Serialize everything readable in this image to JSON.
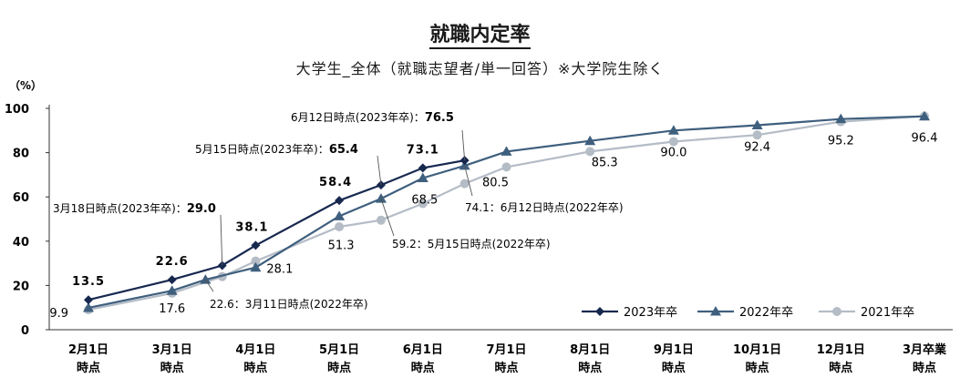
{
  "chart_data": {
    "type": "line",
    "title": "就職内定率",
    "subtitle": "大学生_全体（就職志望者/単一回答）※大学院生除く",
    "ylabel": "（%）",
    "ylim": [
      0,
      100
    ],
    "yticks": [
      0,
      20,
      40,
      60,
      80,
      100
    ],
    "grid": false,
    "legend_position": "bottom-right",
    "categories": [
      [
        "2月1日",
        "時点"
      ],
      [
        "3月1日",
        "時点"
      ],
      [
        "4月1日",
        "時点"
      ],
      [
        "5月1日",
        "時点"
      ],
      [
        "6月1日",
        "時点"
      ],
      [
        "7月1日",
        "時点"
      ],
      [
        "8月1日",
        "時点"
      ],
      [
        "9月1日",
        "時点"
      ],
      [
        "10月1日",
        "時点"
      ],
      [
        "12月1日",
        "時点"
      ],
      [
        "3月卒業",
        "時点"
      ]
    ],
    "series": [
      {
        "name": "2023年卒",
        "color": "#17284f",
        "marker": "diamond",
        "points": [
          {
            "x": 0,
            "y": 13.5
          },
          {
            "x": 1,
            "y": 22.6
          },
          {
            "x": 1.6,
            "y": 29.0
          },
          {
            "x": 2,
            "y": 38.1
          },
          {
            "x": 3,
            "y": 58.4
          },
          {
            "x": 3.5,
            "y": 65.4
          },
          {
            "x": 4,
            "y": 73.1
          },
          {
            "x": 4.5,
            "y": 76.5
          }
        ]
      },
      {
        "name": "2022年卒",
        "color": "#3f5f7e",
        "marker": "triangle",
        "points": [
          {
            "x": 0,
            "y": 9.9
          },
          {
            "x": 1,
            "y": 17.6
          },
          {
            "x": 1.4,
            "y": 22.6
          },
          {
            "x": 2,
            "y": 28.1
          },
          {
            "x": 3,
            "y": 51.3
          },
          {
            "x": 3.5,
            "y": 59.2
          },
          {
            "x": 4,
            "y": 68.5
          },
          {
            "x": 4.5,
            "y": 74.1
          },
          {
            "x": 5,
            "y": 80.5
          },
          {
            "x": 6,
            "y": 85.3
          },
          {
            "x": 7,
            "y": 90.0
          },
          {
            "x": 8,
            "y": 92.4
          },
          {
            "x": 9,
            "y": 95.2
          },
          {
            "x": 10,
            "y": 96.4
          }
        ]
      },
      {
        "name": "2021年卒",
        "color": "#b4bcc6",
        "marker": "circle",
        "points": [
          {
            "x": 0,
            "y": 9.0
          },
          {
            "x": 1,
            "y": 16.5
          },
          {
            "x": 1.6,
            "y": 24.0
          },
          {
            "x": 2,
            "y": 31.0
          },
          {
            "x": 3,
            "y": 46.5
          },
          {
            "x": 3.5,
            "y": 49.5
          },
          {
            "x": 4,
            "y": 57.0
          },
          {
            "x": 4.5,
            "y": 66.0
          },
          {
            "x": 5,
            "y": 73.5
          },
          {
            "x": 6,
            "y": 80.5
          },
          {
            "x": 7,
            "y": 85.0
          },
          {
            "x": 8,
            "y": 88.0
          },
          {
            "x": 9,
            "y": 94.0
          },
          {
            "x": 10,
            "y": 96.5
          }
        ]
      }
    ],
    "data_labels": [
      {
        "text": "13.5",
        "x": 0,
        "y": 13.5,
        "bold": true,
        "dx": 0,
        "dy": -16,
        "anchor": "middle"
      },
      {
        "text": "22.6",
        "x": 1,
        "y": 22.6,
        "bold": true,
        "dx": 0,
        "dy": -16,
        "anchor": "middle"
      },
      {
        "text": "38.1",
        "x": 2,
        "y": 38.1,
        "bold": true,
        "dx": -4,
        "dy": -16,
        "anchor": "middle"
      },
      {
        "text": "58.4",
        "x": 3,
        "y": 58.4,
        "bold": true,
        "dx": -4,
        "dy": -16,
        "anchor": "middle"
      },
      {
        "text": "73.1",
        "x": 4,
        "y": 73.1,
        "bold": true,
        "dx": 0,
        "dy": -16,
        "anchor": "middle"
      },
      {
        "text": "9.9",
        "x": 0,
        "y": 9.9,
        "bold": false,
        "dx": -22,
        "dy": 10,
        "anchor": "end"
      },
      {
        "text": "17.6",
        "x": 1,
        "y": 17.6,
        "bold": false,
        "dx": 0,
        "dy": 24,
        "anchor": "middle"
      },
      {
        "text": "28.1",
        "x": 2,
        "y": 28.1,
        "bold": false,
        "dx": 12,
        "dy": 6,
        "anchor": "start"
      },
      {
        "text": "51.3",
        "x": 3,
        "y": 51.3,
        "bold": false,
        "dx": 2,
        "dy": 36,
        "anchor": "middle"
      },
      {
        "text": "68.5",
        "x": 4,
        "y": 68.5,
        "bold": false,
        "dx": 2,
        "dy": 28,
        "anchor": "middle"
      },
      {
        "text": "80.5",
        "x": 5,
        "y": 80.5,
        "bold": false,
        "dx": -12,
        "dy": 38,
        "anchor": "middle"
      },
      {
        "text": "85.3",
        "x": 6,
        "y": 85.3,
        "bold": false,
        "dx": 16,
        "dy": 28,
        "anchor": "middle"
      },
      {
        "text": "90.0",
        "x": 7,
        "y": 90.0,
        "bold": false,
        "dx": 0,
        "dy": 28,
        "anchor": "middle"
      },
      {
        "text": "92.4",
        "x": 8,
        "y": 92.4,
        "bold": false,
        "dx": 0,
        "dy": 28,
        "anchor": "middle"
      },
      {
        "text": "95.2",
        "x": 9,
        "y": 95.2,
        "bold": false,
        "dx": 0,
        "dy": 28,
        "anchor": "middle"
      },
      {
        "text": "96.4",
        "x": 10,
        "y": 96.4,
        "bold": false,
        "dx": 0,
        "dy": 28,
        "anchor": "middle"
      }
    ],
    "annotations": [
      {
        "label": "3月18日時点(2023年卒)：",
        "value": "29.0",
        "bold_value": true
      },
      {
        "label": "5月15日時点(2023年卒)：",
        "value": "65.4",
        "bold_value": true
      },
      {
        "label": "6月12日時点(2023年卒)：",
        "value": "76.5",
        "bold_value": true
      },
      {
        "value": "22.6",
        "label": "：3月11日時点(2022年卒)",
        "bold_value": false
      },
      {
        "value": "59.2",
        "label": "：5月15日時点(2022年卒)",
        "bold_value": false
      },
      {
        "value": "74.1",
        "label": "：6月12日時点(2022年卒)",
        "bold_value": false
      }
    ]
  }
}
